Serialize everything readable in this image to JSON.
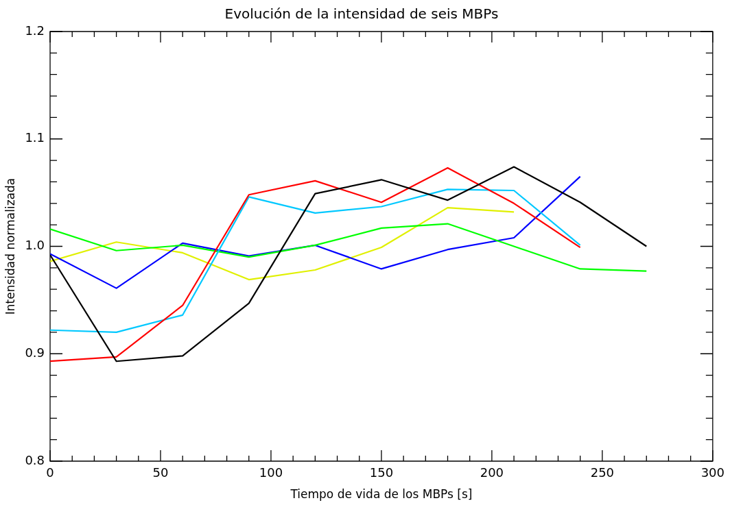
{
  "chart_data": {
    "type": "line",
    "title": "Evolución de la intensidad de seis MBPs",
    "xlabel": "Tiempo de vida de los MBPs [s]",
    "ylabel": "Intensidad normalizada",
    "x": [
      0,
      30,
      60,
      90,
      120,
      150,
      180,
      210,
      240,
      270
    ],
    "series": [
      {
        "color": "#000000",
        "values": [
          0.992,
          0.893,
          0.898,
          0.947,
          1.049,
          1.062,
          1.043,
          1.074,
          1.041,
          1.0
        ]
      },
      {
        "color": "#ff0000",
        "values": [
          0.893,
          0.897,
          0.945,
          1.048,
          1.061,
          1.041,
          1.073,
          1.04,
          0.999,
          null
        ]
      },
      {
        "color": "#00c8ff",
        "values": [
          0.922,
          0.92,
          0.936,
          1.046,
          1.031,
          1.037,
          1.053,
          1.052,
          1.001,
          null
        ]
      },
      {
        "color": "#00ff00",
        "values": [
          1.016,
          0.996,
          1.001,
          0.99,
          1.001,
          1.017,
          1.021,
          1.0,
          0.979,
          0.977
        ]
      },
      {
        "color": "#0000ff",
        "values": [
          0.993,
          0.961,
          1.003,
          0.991,
          1.001,
          0.979,
          0.997,
          1.008,
          1.065,
          null
        ]
      },
      {
        "color": "#e0f000",
        "values": [
          0.986,
          1.004,
          0.994,
          0.969,
          0.978,
          0.999,
          1.036,
          1.032,
          null,
          null
        ]
      }
    ],
    "xlim": [
      0,
      300
    ],
    "xticks": [
      0,
      {
        "value": 10,
        "label": null
      },
      {
        "value": 20,
        "label": null
      },
      {
        "value": 30,
        "label": null
      },
      {
        "value": 40,
        "label": null
      },
      50,
      {
        "value": 60,
        "label": null
      },
      {
        "value": 70,
        "label": null
      },
      {
        "value": 80,
        "label": null
      },
      {
        "value": 90,
        "label": null
      },
      100,
      {
        "value": 110,
        "label": null
      },
      {
        "value": 120,
        "label": null
      },
      {
        "value": 130,
        "label": null
      },
      {
        "value": 140,
        "label": null
      },
      150,
      {
        "value": 160,
        "label": null
      },
      {
        "value": 170,
        "label": null
      },
      {
        "value": 180,
        "label": null
      },
      {
        "value": 190,
        "label": null
      },
      200,
      {
        "value": 210,
        "label": null
      },
      {
        "value": 220,
        "label": null
      },
      {
        "value": 230,
        "label": null
      },
      {
        "value": 240,
        "label": null
      },
      250,
      {
        "value": 260,
        "label": null
      },
      {
        "value": 270,
        "label": null
      },
      {
        "value": 280,
        "label": null
      },
      {
        "value": 290,
        "label": null
      },
      300
    ],
    "ylim": [
      0.8,
      1.2
    ],
    "yticks": [
      0.8,
      {
        "value": 0.82,
        "label": null
      },
      {
        "value": 0.84,
        "label": null
      },
      {
        "value": 0.86,
        "label": null
      },
      {
        "value": 0.88,
        "label": null
      },
      0.9,
      {
        "value": 0.92,
        "label": null
      },
      {
        "value": 0.94,
        "label": null
      },
      {
        "value": 0.96,
        "label": null
      },
      {
        "value": 0.98,
        "label": null
      },
      {
        "value": 1.0,
        "label": "1.0"
      },
      {
        "value": 1.02,
        "label": null
      },
      {
        "value": 1.04,
        "label": null
      },
      {
        "value": 1.06,
        "label": null
      },
      {
        "value": 1.08,
        "label": null
      },
      1.1,
      {
        "value": 1.12,
        "label": null
      },
      {
        "value": 1.14,
        "label": null
      },
      {
        "value": 1.16,
        "label": null
      },
      {
        "value": 1.18,
        "label": null
      },
      1.2
    ],
    "grid": false,
    "legend": false,
    "marker": "none",
    "line_style": "solid"
  }
}
